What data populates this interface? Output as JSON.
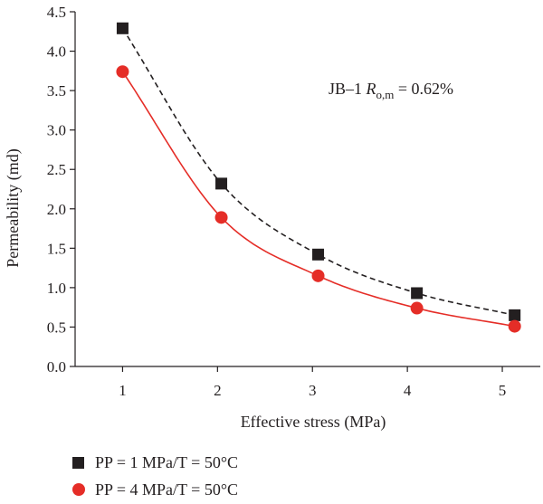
{
  "chart_data": {
    "type": "scatter",
    "xlabel": "Effective stress (MPa)",
    "ylabel": "Permeability (md)",
    "xlim": [
      0.5,
      5.4
    ],
    "ylim": [
      0,
      4.5
    ],
    "x_ticks": [
      "1",
      "2",
      "3",
      "4",
      "5"
    ],
    "y_ticks": [
      "0.0",
      "0.5",
      "1.0",
      "1.5",
      "2.0",
      "2.5",
      "3.0",
      "3.5",
      "4.0",
      "4.5"
    ],
    "grid": false,
    "legend_position": "bottom-left",
    "annotation": {
      "prefix": "JB–1 ",
      "symbol": "R",
      "subscript": "o,m",
      "suffix": " = 0.62%"
    },
    "series": [
      {
        "name": "PP = 1 MPa/T = 50°C",
        "marker": "square",
        "color": "#231f20",
        "fit_line": "dashed",
        "x": [
          1.0,
          2.04,
          3.06,
          4.1,
          5.13
        ],
        "y": [
          4.29,
          2.32,
          1.42,
          0.93,
          0.65
        ]
      },
      {
        "name": "PP = 4 MPa/T = 50°C",
        "marker": "circle",
        "color": "#e52d27",
        "fit_line": "solid",
        "x": [
          1.0,
          2.04,
          3.06,
          4.1,
          5.13
        ],
        "y": [
          3.74,
          1.89,
          1.15,
          0.74,
          0.51
        ]
      }
    ]
  }
}
